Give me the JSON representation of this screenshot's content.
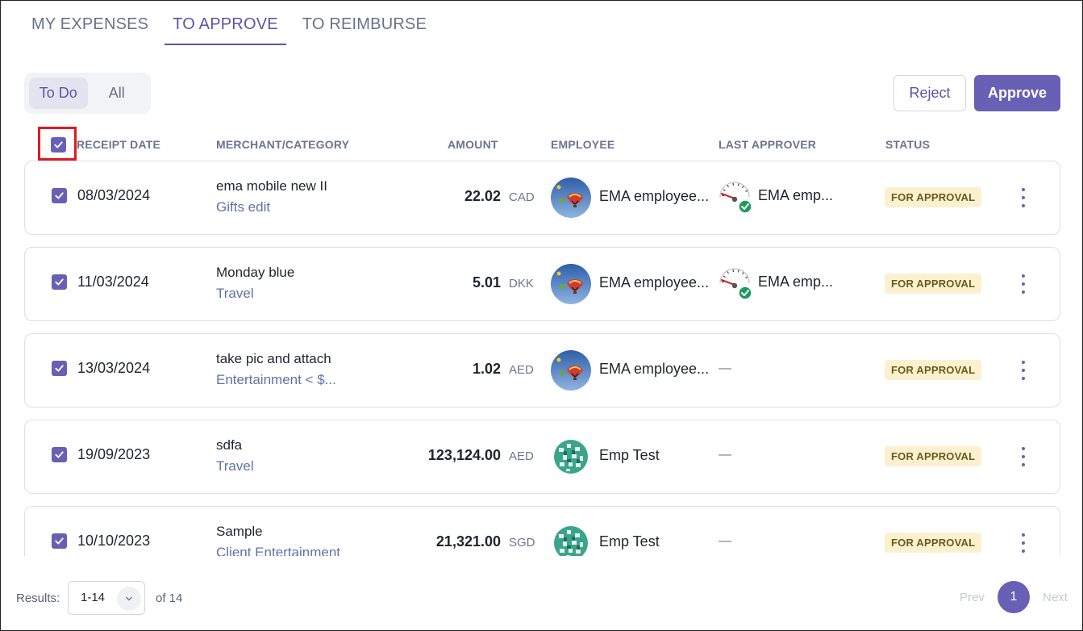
{
  "tabs": [
    {
      "label": "MY EXPENSES",
      "active": false
    },
    {
      "label": "TO APPROVE",
      "active": true
    },
    {
      "label": "TO REIMBURSE",
      "active": false
    }
  ],
  "filter": {
    "todo": "To Do",
    "all": "All",
    "selected": "To Do"
  },
  "actions": {
    "reject": "Reject",
    "approve": "Approve"
  },
  "columns": {
    "receipt_date": "RECEIPT DATE",
    "merchant_category": "MERCHANT/CATEGORY",
    "amount": "AMOUNT",
    "employee": "EMPLOYEE",
    "last_approver": "LAST APPROVER",
    "status": "STATUS"
  },
  "select_all_checked": true,
  "rows": [
    {
      "checked": true,
      "date": "08/03/2024",
      "merchant": "ema mobile new II",
      "category": "Gifts edit",
      "amount": "22.02",
      "currency": "CAD",
      "employee": "EMA employee...",
      "employee_avatar": "balloon",
      "approver": "EMA emp...",
      "approver_icon": "gauge-check-icon",
      "status": "FOR APPROVAL"
    },
    {
      "checked": true,
      "date": "11/03/2024",
      "merchant": "Monday blue",
      "category": "Travel",
      "amount": "5.01",
      "currency": "DKK",
      "employee": "EMA employee...",
      "employee_avatar": "balloon",
      "approver": "EMA emp...",
      "approver_icon": "gauge-check-icon",
      "status": "FOR APPROVAL"
    },
    {
      "checked": true,
      "date": "13/03/2024",
      "merchant": "take pic and attach",
      "category": "Entertainment < $...",
      "amount": "1.02",
      "currency": "AED",
      "employee": "EMA employee...",
      "employee_avatar": "balloon",
      "approver": "—",
      "approver_icon": "",
      "status": "FOR APPROVAL"
    },
    {
      "checked": true,
      "date": "19/09/2023",
      "merchant": "sdfa",
      "category": "Travel",
      "amount": "123,124.00",
      "currency": "AED",
      "employee": "Emp Test",
      "employee_avatar": "green-sphere",
      "approver": "—",
      "approver_icon": "",
      "status": "FOR APPROVAL"
    },
    {
      "checked": true,
      "date": "10/10/2023",
      "merchant": "Sample",
      "category": "Client Entertainment",
      "amount": "21,321.00",
      "currency": "SGD",
      "employee": "Emp Test",
      "employee_avatar": "green-sphere",
      "approver": "—",
      "approver_icon": "",
      "status": "FOR APPROVAL"
    }
  ],
  "footer": {
    "results_label": "Results:",
    "page_size": "1-14",
    "of_total": "of 14",
    "prev": "Prev",
    "current_page": "1",
    "next": "Next"
  },
  "colors": {
    "accent": "#6860b5",
    "badge_bg": "#fbf1cf",
    "highlight_box": "#e3191f"
  }
}
